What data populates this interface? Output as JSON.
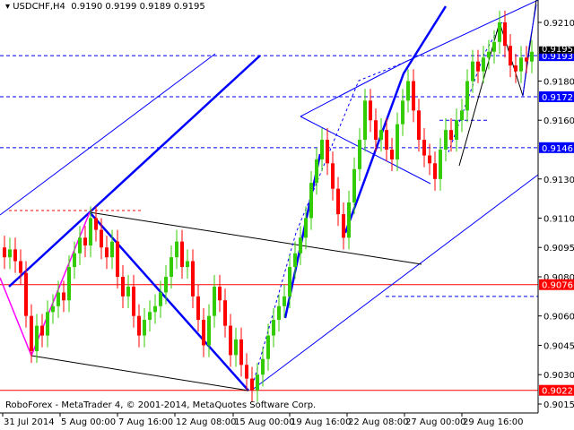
{
  "header": {
    "symbol_title": "USDCHF,H4",
    "ohlc": "0.9190 0.9199 0.9189 0.9195"
  },
  "footer": {
    "copyright": "RoboForex - MetaTrader 4, © 2001-2014, MetaQuotes Software Corp."
  },
  "chart_data": {
    "type": "candlestick",
    "title": "USDCHF,H4",
    "ylim": [
      0.9007,
      0.922
    ],
    "grid": false,
    "colors": {
      "bull": "#33cc00",
      "bear": "#ff0000",
      "levels": "#0000ff",
      "support": "#ff0000"
    },
    "x_tick_labels": [
      "31 Jul 2014",
      "5 Aug 00:00",
      "7 Aug 16:00",
      "12 Aug 08:00",
      "15 Aug 00:00",
      "19 Aug 16:00",
      "22 Aug 08:00",
      "27 Aug 00:00",
      "29 Aug 16:00"
    ],
    "y_tick_labels": [
      "0.9210",
      "0.9180",
      "0.9160",
      "0.9130",
      "0.9110",
      "0.9095",
      "0.9080",
      "0.9060",
      "0.9045",
      "0.9030",
      "0.9015"
    ],
    "current_price": "0.9195",
    "closes": [
      0.909,
      0.9094,
      0.9088,
      0.9082,
      0.906,
      0.9042,
      0.9055,
      0.905,
      0.9062,
      0.9065,
      0.9072,
      0.9068,
      0.9085,
      0.9092,
      0.91,
      0.9096,
      0.911,
      0.9104,
      0.9095,
      0.909,
      0.9098,
      0.908,
      0.907,
      0.9075,
      0.906,
      0.905,
      0.9058,
      0.9062,
      0.9065,
      0.9072,
      0.908,
      0.909,
      0.9098,
      0.9085,
      0.9088,
      0.907,
      0.9058,
      0.9045,
      0.906,
      0.9075,
      0.9068,
      0.9055,
      0.904,
      0.9048,
      0.9035,
      0.9028,
      0.9022,
      0.903,
      0.9038,
      0.905,
      0.9058,
      0.9065,
      0.907,
      0.9085,
      0.9092,
      0.91,
      0.911,
      0.9128,
      0.914,
      0.915,
      0.9138,
      0.9125,
      0.9112,
      0.91,
      0.9118,
      0.9135,
      0.915,
      0.917,
      0.916,
      0.915,
      0.9155,
      0.9145,
      0.914,
      0.9158,
      0.917,
      0.918,
      0.9165,
      0.915,
      0.9142,
      0.9138,
      0.913,
      0.9145,
      0.9155,
      0.915,
      0.916,
      0.9165,
      0.918,
      0.919,
      0.9185,
      0.9192,
      0.9195,
      0.92,
      0.921,
      0.9198,
      0.9188,
      0.9185,
      0.9192,
      0.919,
      0.9195
    ],
    "levels": [
      {
        "value": 0.9193,
        "label": "0.9193",
        "style": "dashed",
        "color": "#0000ff"
      },
      {
        "value": 0.9172,
        "label": "0.9172",
        "style": "dashed",
        "color": "#0000ff"
      },
      {
        "value": 0.916,
        "label": "",
        "style": "dashed",
        "color": "#0000ff"
      },
      {
        "value": 0.9146,
        "label": "0.9146",
        "style": "dashed",
        "color": "#0000ff"
      },
      {
        "value": 0.9076,
        "label": "0.9076",
        "style": "solid",
        "color": "#ff0000"
      },
      {
        "value": 0.907,
        "label": "",
        "style": "dashed",
        "color": "#0000ff"
      },
      {
        "value": 0.9022,
        "label": "0.9022",
        "style": "solid",
        "color": "#ff0000"
      }
    ]
  }
}
